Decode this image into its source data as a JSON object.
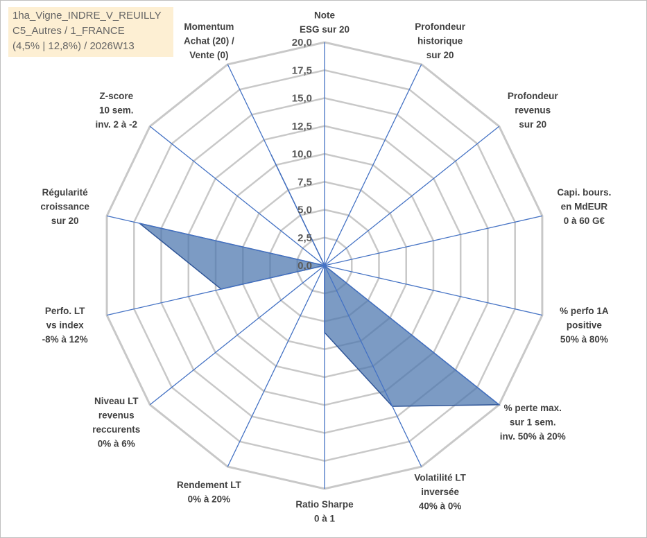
{
  "chart_data": {
    "type": "radar",
    "title_lines": [
      "1ha_Vigne_INDRE_V_REUILLY",
      "C5_Autres / 1_FRANCE",
      "(4,5% | 12,8%) / 2026W13"
    ],
    "rmax": 20,
    "rticks": [
      "0,0",
      "2,5",
      "5,0",
      "7,5",
      "10,0",
      "12,5",
      "15,0",
      "17,5",
      "20,0"
    ],
    "axes": [
      {
        "lines": [
          "Note",
          "ESG sur 20"
        ]
      },
      {
        "lines": [
          "Profondeur",
          "historique",
          "sur 20"
        ]
      },
      {
        "lines": [
          "Profondeur",
          "revenus",
          "sur 20"
        ]
      },
      {
        "lines": [
          "Capi. bours.",
          "en MdEUR",
          "0 à 60 G€"
        ]
      },
      {
        "lines": [
          "% perfo 1A",
          "positive",
          "50% à 80%"
        ]
      },
      {
        "lines": [
          "% perte max.",
          "sur 1 sem.",
          "inv. 50% à 20%"
        ]
      },
      {
        "lines": [
          "Volatilité LT",
          "inversée",
          "40% à 0%"
        ]
      },
      {
        "lines": [
          "Ratio Sharpe",
          "0 à 1"
        ]
      },
      {
        "lines": [
          "Rendement LT",
          "0% à 20%"
        ]
      },
      {
        "lines": [
          "Niveau LT",
          "revenus",
          "reccurents",
          "0% à 6%"
        ]
      },
      {
        "lines": [
          "Perfo. LT",
          "vs index",
          "-8% à 12%"
        ]
      },
      {
        "lines": [
          "Régularité",
          "croissance",
          "sur 20"
        ]
      },
      {
        "lines": [
          "Z-score",
          "10 sem.",
          "inv. 2 à -2"
        ]
      },
      {
        "lines": [
          "Momentum",
          "Achat (20) /",
          "Vente (0)"
        ]
      }
    ],
    "values": [
      0,
      0,
      0,
      0,
      0,
      20,
      14,
      6,
      0,
      0,
      9.5,
      17,
      0,
      11
    ],
    "colors": {
      "fill": "#4a74ad",
      "fill_opacity": 0.72,
      "stroke": "#2f5597",
      "grid": "#c8c8c8",
      "axis": "#4472c4",
      "label": "#404040"
    }
  }
}
